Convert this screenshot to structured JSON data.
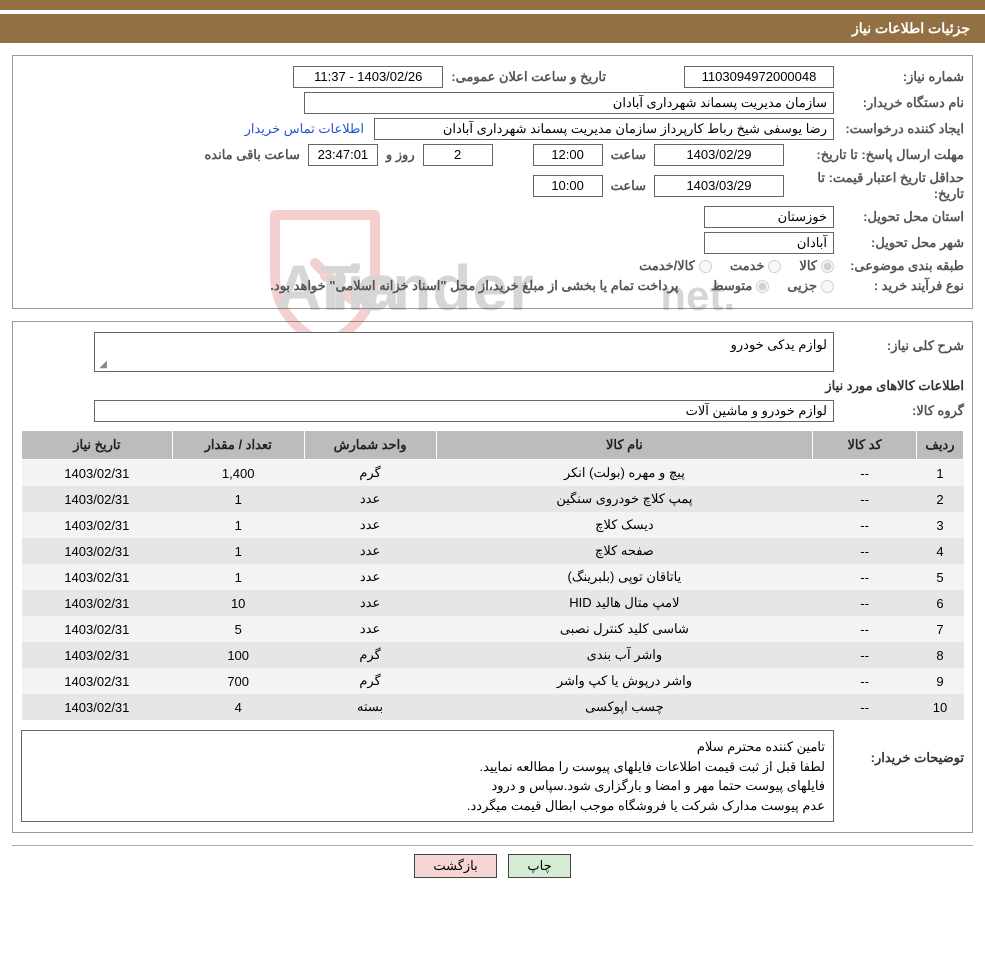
{
  "colors": {
    "brand": "#937044",
    "link": "#2255cc",
    "btn_print_bg": "#d4ecd4",
    "btn_back_bg": "#f5d4d4",
    "th_bg": "#bcbcbc",
    "row_odd": "#f3f3f3",
    "row_even": "#e6e6e6",
    "watermark_text": "#4a4a4a",
    "watermark_red": "#cf2b2b"
  },
  "title": "جزئیات اطلاعات نیاز",
  "labels": {
    "need_no": "شماره نیاز:",
    "announce_dt": "تاریخ و ساعت اعلان عمومی:",
    "buyer_org": "نام دستگاه خریدار:",
    "requester": "ایجاد کننده درخواست:",
    "contact_link": "اطلاعات تماس خریدار",
    "reply_deadline": "مهلت ارسال پاسخ: تا تاریخ:",
    "time": "ساعت",
    "days": "روز و",
    "remaining": "ساعت باقی مانده",
    "price_validity": "حداقل تاریخ اعتبار قیمت: تا تاریخ:",
    "province": "استان محل تحویل:",
    "city": "شهر محل تحویل:",
    "classification": "طبقه بندی موضوعی:",
    "cls_kala": "کالا",
    "cls_khidmat": "خدمت",
    "cls_kala_khidmat": "کالا/خدمت",
    "purchase_type": "نوع فرآیند خرید :",
    "pt_jozei": "جزیی",
    "pt_motavaset": "متوسط",
    "pt_note": "پرداخت تمام یا بخشی از مبلغ خرید،از محل \"اسناد خزانه اسلامی\" خواهد بود.",
    "summary": "شرح کلی نیاز:",
    "items_heading": "اطلاعات کالاهای مورد نیاز",
    "group": "گروه کالا:",
    "buyer_notes": "توضیحات خریدار:"
  },
  "values": {
    "need_no": "1103094972000048",
    "announce_dt": "1403/02/26 - 11:37",
    "buyer_org": "سازمان مدیریت پسماند شهرداری آبادان",
    "requester": "رضا یوسفی شیخ رباط کارپرداز سازمان مدیریت پسماند شهرداری آبادان",
    "reply_date": "1403/02/29",
    "reply_time": "12:00",
    "days_remaining": "2",
    "countdown": "23:47:01",
    "pv_date": "1403/03/29",
    "pv_time": "10:00",
    "province": "خوزستان",
    "city": "آبادان",
    "summary": "لوازم یدکی خودرو",
    "group": "لوازم خودرو و ماشین آلات"
  },
  "table": {
    "columns": [
      "ردیف",
      "کد کالا",
      "نام کالا",
      "واحد شمارش",
      "تعداد / مقدار",
      "تاریخ نیاز"
    ],
    "col_widths": [
      "5%",
      "11%",
      "40%",
      "14%",
      "14%",
      "16%"
    ],
    "rows": [
      {
        "idx": "1",
        "code": "--",
        "name": "پیچ و مهره (بولت) انکر",
        "unit": "گرم",
        "qty": "1,400",
        "date": "1403/02/31"
      },
      {
        "idx": "2",
        "code": "--",
        "name": "پمپ کلاچ خودروی سنگین",
        "unit": "عدد",
        "qty": "1",
        "date": "1403/02/31"
      },
      {
        "idx": "3",
        "code": "--",
        "name": "دیسک کلاچ",
        "unit": "عدد",
        "qty": "1",
        "date": "1403/02/31"
      },
      {
        "idx": "4",
        "code": "--",
        "name": "صفحه کلاچ",
        "unit": "عدد",
        "qty": "1",
        "date": "1403/02/31"
      },
      {
        "idx": "5",
        "code": "--",
        "name": "یاتاقان توپی (بلبرینگ)",
        "unit": "عدد",
        "qty": "1",
        "date": "1403/02/31"
      },
      {
        "idx": "6",
        "code": "--",
        "name": "لامپ متال هالید HID",
        "unit": "عدد",
        "qty": "10",
        "date": "1403/02/31"
      },
      {
        "idx": "7",
        "code": "--",
        "name": "شاسی کلید کنترل نصبی",
        "unit": "عدد",
        "qty": "5",
        "date": "1403/02/31"
      },
      {
        "idx": "8",
        "code": "--",
        "name": "واشر آب بندی",
        "unit": "گرم",
        "qty": "100",
        "date": "1403/02/31"
      },
      {
        "idx": "9",
        "code": "--",
        "name": "واشر درپوش یا کپ واشر",
        "unit": "گرم",
        "qty": "700",
        "date": "1403/02/31"
      },
      {
        "idx": "10",
        "code": "--",
        "name": "چسب اپوکسی",
        "unit": "بسته",
        "qty": "4",
        "date": "1403/02/31"
      }
    ]
  },
  "buyer_notes_lines": [
    "تامین کننده محترم سلام",
    "لطفا قبل از ثبت قیمت اطلاعات فایلهای پیوست را مطالعه نمایید.",
    "فایلهای پیوست حتما مهر و امضا و بارگزاری شود.سپاس و درود",
    "عدم پیوست مدارک شرکت یا فروشگاه موجب ابطال قیمت میگردد."
  ],
  "buttons": {
    "print": "چاپ",
    "back": "بازگشت"
  },
  "watermark": {
    "text": "Aria Tender.net",
    "text_color": "#4a4a4a",
    "shield_stroke": "#cf2b2b",
    "opacity": 0.22
  }
}
